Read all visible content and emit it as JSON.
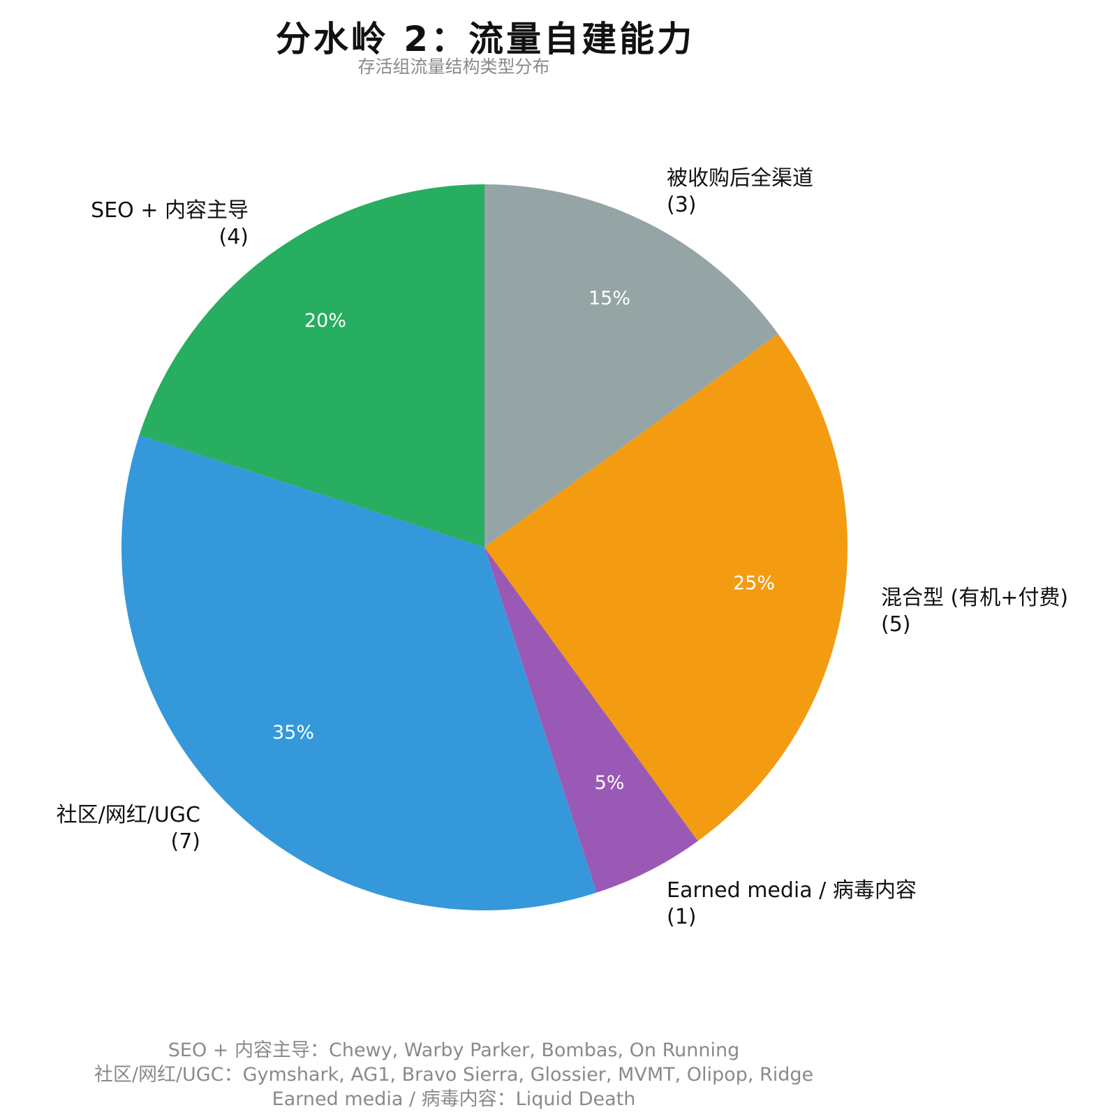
{
  "chart_data": {
    "type": "pie",
    "title": "分水岭 2：流量自建能力",
    "subtitle": "存活组流量结构类型分布",
    "slices": [
      {
        "label": "被收购后全渠道",
        "count_label": "(3)",
        "value": 3,
        "percent_label": "15%",
        "color": "#95A5A6"
      },
      {
        "label": "混合型 (有机+付费)",
        "count_label": "(5)",
        "value": 5,
        "percent_label": "25%",
        "color": "#F39C12"
      },
      {
        "label": "Earned media / 病毒内容",
        "count_label": "(1)",
        "value": 1,
        "percent_label": "5%",
        "color": "#9B59B6"
      },
      {
        "label": "社区/网红/UGC",
        "count_label": "(7)",
        "value": 7,
        "percent_label": "35%",
        "color": "#3498DB"
      },
      {
        "label": "SEO + 内容主导",
        "count_label": "(4)",
        "value": 4,
        "percent_label": "20%",
        "color": "#27AE60"
      }
    ]
  },
  "footnotes": [
    "SEO + 内容主导：Chewy, Warby Parker, Bombas, On Running",
    "社区/网红/UGC：Gymshark, AG1, Bravo Sierra, Glossier, MVMT, Olipop, Ridge",
    "Earned media / 病毒内容：Liquid Death"
  ]
}
